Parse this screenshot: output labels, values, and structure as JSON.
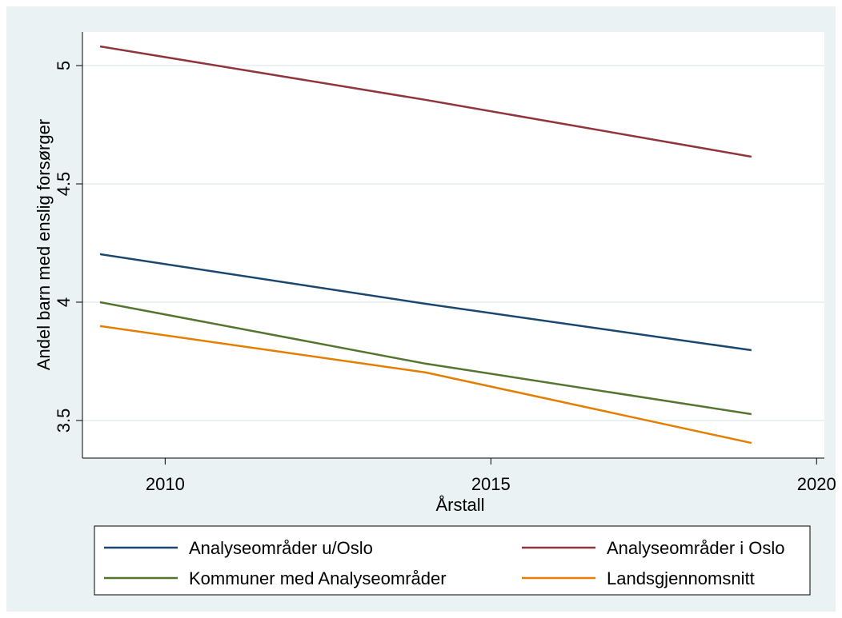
{
  "chart_data": {
    "type": "line",
    "y_label": "Andel barn med enslig forsørger",
    "x_label": "Årstall",
    "x": [
      2009,
      2014,
      2019
    ],
    "xlim": [
      2008.73,
      2020.12
    ],
    "xticks": [
      2010,
      2015,
      2020
    ],
    "ylim": [
      3.341,
      5.142
    ],
    "yticks": [
      3.5,
      4,
      {
        "value": 4.5,
        "label": "4.5"
      },
      5
    ],
    "grid": true,
    "series": [
      {
        "name": "Analyseområder u/Oslo",
        "color": "#1a476f",
        "values": [
          4.203,
          3.993,
          3.797
        ]
      },
      {
        "name": "Analyseområder i Oslo",
        "color": "#90353b",
        "values": [
          5.081,
          4.855,
          4.615
        ]
      },
      {
        "name": "Kommuner med Analyseområder",
        "color": "#55752f",
        "values": [
          4.0,
          3.74,
          3.527
        ]
      },
      {
        "name": "Landsgjennomsnitt",
        "color": "#e37e00",
        "values": [
          3.899,
          3.703,
          3.405
        ]
      }
    ]
  }
}
